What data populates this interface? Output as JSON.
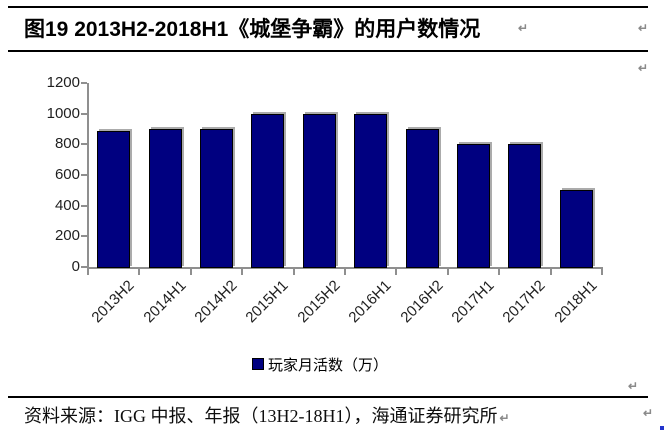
{
  "title": {
    "text": "图19 2013H2-2018H1《城堡争霸》的用户数情况"
  },
  "chart_data": {
    "type": "bar",
    "categories": [
      "2013H2",
      "2014H1",
      "2014H2",
      "2015H1",
      "2015H2",
      "2016H1",
      "2016H2",
      "2017H1",
      "2017H2",
      "2018H1"
    ],
    "values": [
      890,
      900,
      900,
      1000,
      1000,
      1000,
      900,
      800,
      800,
      500
    ],
    "title": "",
    "xlabel": "",
    "ylabel": "",
    "ylim": [
      0,
      1200
    ],
    "yticks": [
      0,
      200,
      400,
      600,
      800,
      1000,
      1200
    ],
    "legend": "玩家月活数（万）",
    "legend_position": "bottom",
    "grid": false,
    "bar_color": "#000080",
    "bar_border_color": "#000000",
    "bar_shadow_color": "#ababab",
    "axis_color": "#8f8f8f",
    "label_color": "#1f1f1f"
  },
  "source": {
    "text": "资料来源：IGG 中报、年报（13H2-18H1），海通证券研究所"
  },
  "marks": {
    "pilcrow": "↵"
  }
}
